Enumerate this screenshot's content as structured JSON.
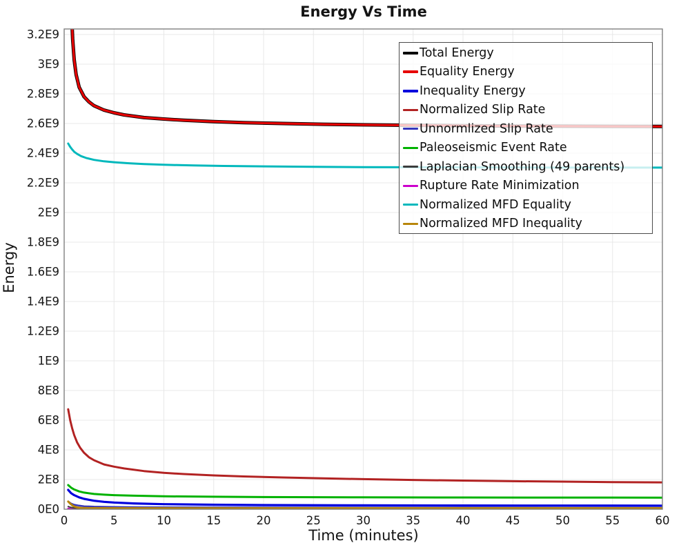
{
  "chart_data": {
    "type": "line",
    "title": "Energy Vs Time",
    "xlabel": "Time (minutes)",
    "ylabel": "Energy",
    "xlim": [
      0,
      60
    ],
    "ylim": [
      0,
      3200000000.0
    ],
    "grid": true,
    "grid_color": "#e8e8e8",
    "border_color": "#7f7f7f",
    "legend_position": "top-right",
    "legend_bg": "rgba(255,255,255,0.78)",
    "x_ticks": [
      0,
      5,
      10,
      15,
      20,
      25,
      30,
      35,
      40,
      45,
      50,
      55,
      60
    ],
    "y_ticks": [
      {
        "v": 0,
        "label": "0E0"
      },
      {
        "v": 200000000.0,
        "label": "2E8"
      },
      {
        "v": 400000000.0,
        "label": "4E8"
      },
      {
        "v": 600000000.0,
        "label": "6E8"
      },
      {
        "v": 800000000.0,
        "label": "8E8"
      },
      {
        "v": 1000000000.0,
        "label": "1E9"
      },
      {
        "v": 1200000000.0,
        "label": "1.2E9"
      },
      {
        "v": 1400000000.0,
        "label": "1.4E9"
      },
      {
        "v": 1600000000.0,
        "label": "1.6E9"
      },
      {
        "v": 1800000000.0,
        "label": "1.8E9"
      },
      {
        "v": 2000000000.0,
        "label": "2E9"
      },
      {
        "v": 2200000000.0,
        "label": "2.2E9"
      },
      {
        "v": 2400000000.0,
        "label": "2.4E9"
      },
      {
        "v": 2600000000.0,
        "label": "2.6E9"
      },
      {
        "v": 2800000000.0,
        "label": "2.8E9"
      },
      {
        "v": 3000000000.0,
        "label": "3E9"
      },
      {
        "v": 3200000000.0,
        "label": "3.2E9"
      }
    ],
    "series": [
      {
        "name": "Total Energy",
        "color": "#000000",
        "width": 5,
        "draw_order": 9,
        "points": [
          [
            0.72,
            3400000000.0
          ],
          [
            0.78,
            3280000000.0
          ],
          [
            0.85,
            3170000000.0
          ],
          [
            1.0,
            3030000000.0
          ],
          [
            1.2,
            2930000000.0
          ],
          [
            1.5,
            2845000000.0
          ],
          [
            2,
            2780000000.0
          ],
          [
            2.5,
            2745000000.0
          ],
          [
            3,
            2720000000.0
          ],
          [
            4,
            2690000000.0
          ],
          [
            5,
            2672000000.0
          ],
          [
            6,
            2658000000.0
          ],
          [
            8,
            2640000000.0
          ],
          [
            10,
            2630000000.0
          ],
          [
            12,
            2622000000.0
          ],
          [
            15,
            2613000000.0
          ],
          [
            18,
            2606000000.0
          ],
          [
            22,
            2600000000.0
          ],
          [
            26,
            2595000000.0
          ],
          [
            30,
            2591000000.0
          ],
          [
            35,
            2588000000.0
          ],
          [
            40,
            2585000000.0
          ],
          [
            45,
            2583000000.0
          ],
          [
            50,
            2582000000.0
          ],
          [
            55,
            2581000000.0
          ],
          [
            60,
            2580000000.0
          ]
        ]
      },
      {
        "name": "Equality Energy",
        "color": "#e60000",
        "width": 3.2,
        "draw_order": 10,
        "points": [
          [
            0.72,
            3400000000.0
          ],
          [
            0.78,
            3280000000.0
          ],
          [
            0.85,
            3170000000.0
          ],
          [
            1.0,
            3030000000.0
          ],
          [
            1.2,
            2930000000.0
          ],
          [
            1.5,
            2845000000.0
          ],
          [
            2,
            2780000000.0
          ],
          [
            2.5,
            2745000000.0
          ],
          [
            3,
            2720000000.0
          ],
          [
            4,
            2690000000.0
          ],
          [
            5,
            2672000000.0
          ],
          [
            6,
            2658000000.0
          ],
          [
            8,
            2640000000.0
          ],
          [
            10,
            2630000000.0
          ],
          [
            12,
            2622000000.0
          ],
          [
            15,
            2613000000.0
          ],
          [
            18,
            2606000000.0
          ],
          [
            22,
            2600000000.0
          ],
          [
            26,
            2595000000.0
          ],
          [
            30,
            2591000000.0
          ],
          [
            35,
            2588000000.0
          ],
          [
            40,
            2585000000.0
          ],
          [
            45,
            2583000000.0
          ],
          [
            50,
            2582000000.0
          ],
          [
            55,
            2581000000.0
          ],
          [
            60,
            2580000000.0
          ]
        ]
      },
      {
        "name": "Inequality Energy",
        "color": "#0000dd",
        "width": 3.2,
        "draw_order": 5,
        "points": [
          [
            0.4,
            130000000.0
          ],
          [
            0.7,
            108000000.0
          ],
          [
            1,
            95000000.0
          ],
          [
            1.5,
            80000000.0
          ],
          [
            2,
            70000000.0
          ],
          [
            3,
            57000000.0
          ],
          [
            4,
            50000000.0
          ],
          [
            5,
            45000000.0
          ],
          [
            7,
            39000000.0
          ],
          [
            10,
            34000000.0
          ],
          [
            15,
            30000000.0
          ],
          [
            20,
            28000000.0
          ],
          [
            30,
            26000000.0
          ],
          [
            40,
            25000000.0
          ],
          [
            50,
            24500000.0
          ],
          [
            60,
            24000000.0
          ]
        ]
      },
      {
        "name": "Normalized Slip Rate",
        "color": "#b22222",
        "width": 3,
        "draw_order": 7,
        "points": [
          [
            0.4,
            674000000.0
          ],
          [
            0.6,
            600000000.0
          ],
          [
            0.8,
            545000000.0
          ],
          [
            1,
            500000000.0
          ],
          [
            1.3,
            450000000.0
          ],
          [
            1.6,
            415000000.0
          ],
          [
            2,
            380000000.0
          ],
          [
            2.5,
            350000000.0
          ],
          [
            3,
            330000000.0
          ],
          [
            4,
            302000000.0
          ],
          [
            5,
            287000000.0
          ],
          [
            6,
            275000000.0
          ],
          [
            8,
            257000000.0
          ],
          [
            10,
            245000000.0
          ],
          [
            12,
            237000000.0
          ],
          [
            15,
            228000000.0
          ],
          [
            18,
            221000000.0
          ],
          [
            22,
            214000000.0
          ],
          [
            26,
            208000000.0
          ],
          [
            30,
            203000000.0
          ],
          [
            35,
            197000000.0
          ],
          [
            40,
            193000000.0
          ],
          [
            45,
            189000000.0
          ],
          [
            50,
            186000000.0
          ],
          [
            55,
            183000000.0
          ],
          [
            60,
            181000000.0
          ]
        ]
      },
      {
        "name": "Unnormlized Slip Rate",
        "color": "#3535bb",
        "width": 2.5,
        "draw_order": 3,
        "points": [
          [
            0.4,
            52000000.0
          ],
          [
            0.7,
            38000000.0
          ],
          [
            1,
            30000000.0
          ],
          [
            1.5,
            24000000.0
          ],
          [
            2,
            20000000.0
          ],
          [
            3,
            17000000.0
          ],
          [
            5,
            15000000.0
          ],
          [
            8,
            13500000.0
          ],
          [
            12,
            12500000.0
          ],
          [
            20,
            11500000.0
          ],
          [
            30,
            11000000.0
          ],
          [
            45,
            10500000.0
          ],
          [
            60,
            10000000.0
          ]
        ]
      },
      {
        "name": "Paleoseismic Event Rate",
        "color": "#00b200",
        "width": 3,
        "draw_order": 6,
        "points": [
          [
            0.4,
            163000000.0
          ],
          [
            0.7,
            145000000.0
          ],
          [
            1,
            133000000.0
          ],
          [
            1.5,
            120000000.0
          ],
          [
            2,
            112000000.0
          ],
          [
            3,
            103000000.0
          ],
          [
            4,
            98000000.0
          ],
          [
            5,
            95000000.0
          ],
          [
            7,
            91000000.0
          ],
          [
            10,
            87000000.0
          ],
          [
            15,
            84000000.0
          ],
          [
            20,
            82000000.0
          ],
          [
            30,
            80000000.0
          ],
          [
            40,
            79000000.0
          ],
          [
            50,
            78500000.0
          ],
          [
            60,
            78000000.0
          ]
        ]
      },
      {
        "name": "Laplacian Smoothing (49 parents)",
        "color": "#3c3c3c",
        "width": 2,
        "draw_order": 2,
        "points": [
          [
            0.4,
            18000000.0
          ],
          [
            0.7,
            12000000.0
          ],
          [
            1,
            9000000.0
          ],
          [
            2,
            6000000.0
          ],
          [
            3,
            5000000.0
          ],
          [
            5,
            4000000.0
          ],
          [
            10,
            3500000.0
          ],
          [
            30,
            3000000.0
          ],
          [
            60,
            3000000.0
          ]
        ]
      },
      {
        "name": "Rupture Rate Minimization",
        "color": "#cc00cc",
        "width": 2.5,
        "draw_order": 1,
        "points": [
          [
            0.4,
            5000000.0
          ],
          [
            0.7,
            2500000.0
          ],
          [
            1,
            1500000.0
          ],
          [
            2,
            800000.0
          ],
          [
            5,
            500000.0
          ],
          [
            10,
            400000.0
          ],
          [
            60,
            300000.0
          ]
        ]
      },
      {
        "name": "Normalized MFD Equality",
        "color": "#00b8bc",
        "width": 3,
        "draw_order": 8,
        "points": [
          [
            0.4,
            2465000000.0
          ],
          [
            0.6,
            2443000000.0
          ],
          [
            0.8,
            2425000000.0
          ],
          [
            1,
            2410000000.0
          ],
          [
            1.3,
            2395000000.0
          ],
          [
            1.7,
            2380000000.0
          ],
          [
            2.2,
            2368000000.0
          ],
          [
            3,
            2355000000.0
          ],
          [
            4,
            2345000000.0
          ],
          [
            5,
            2339000000.0
          ],
          [
            6.5,
            2332000000.0
          ],
          [
            8,
            2327000000.0
          ],
          [
            10,
            2322000000.0
          ],
          [
            13,
            2317000000.0
          ],
          [
            16,
            2314000000.0
          ],
          [
            20,
            2311000000.0
          ],
          [
            25,
            2308000000.0
          ],
          [
            30,
            2306000000.0
          ],
          [
            40,
            2304000000.0
          ],
          [
            50,
            2303000000.0
          ],
          [
            60,
            2303000000.0
          ]
        ]
      },
      {
        "name": "Normalized MFD Inequality",
        "color": "#b8860b",
        "width": 3,
        "draw_order": 4,
        "points": [
          [
            0.4,
            52000000.0
          ],
          [
            0.6,
            38000000.0
          ],
          [
            0.8,
            27000000.0
          ],
          [
            1,
            19000000.0
          ],
          [
            1.3,
            12000000.0
          ],
          [
            1.7,
            9000000.0
          ],
          [
            2.2,
            8000000.0
          ],
          [
            3,
            7500000.0
          ],
          [
            5,
            7200000.0
          ],
          [
            10,
            7000000.0
          ],
          [
            20,
            7000000.0
          ],
          [
            40,
            7000000.0
          ],
          [
            60,
            7000000.0
          ]
        ]
      }
    ]
  }
}
